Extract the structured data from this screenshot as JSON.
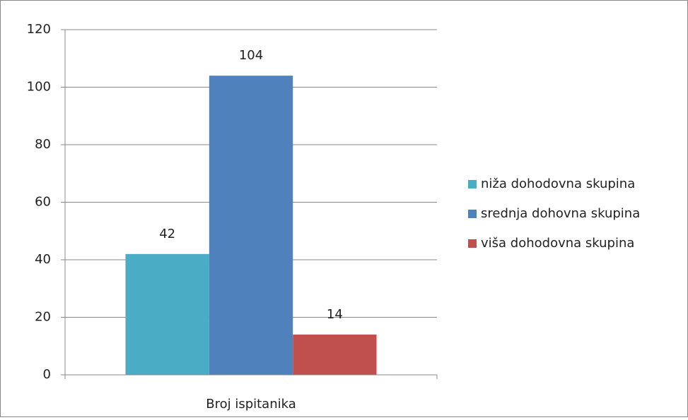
{
  "chart_data": {
    "type": "bar",
    "categories": [
      "Broj ispitanika"
    ],
    "series": [
      {
        "name": "niža dohodovna skupina",
        "color": "#4bacc6",
        "values": [
          42
        ]
      },
      {
        "name": "srednja dohovna skupina",
        "color": "#4f81bd",
        "values": [
          104
        ]
      },
      {
        "name": "viša dohodovna skupina",
        "color": "#c0504d",
        "values": [
          14
        ]
      }
    ],
    "ylim": [
      0,
      120
    ],
    "yticks": [
      0,
      20,
      40,
      60,
      80,
      100,
      120
    ],
    "grid": true,
    "legend": "right"
  }
}
